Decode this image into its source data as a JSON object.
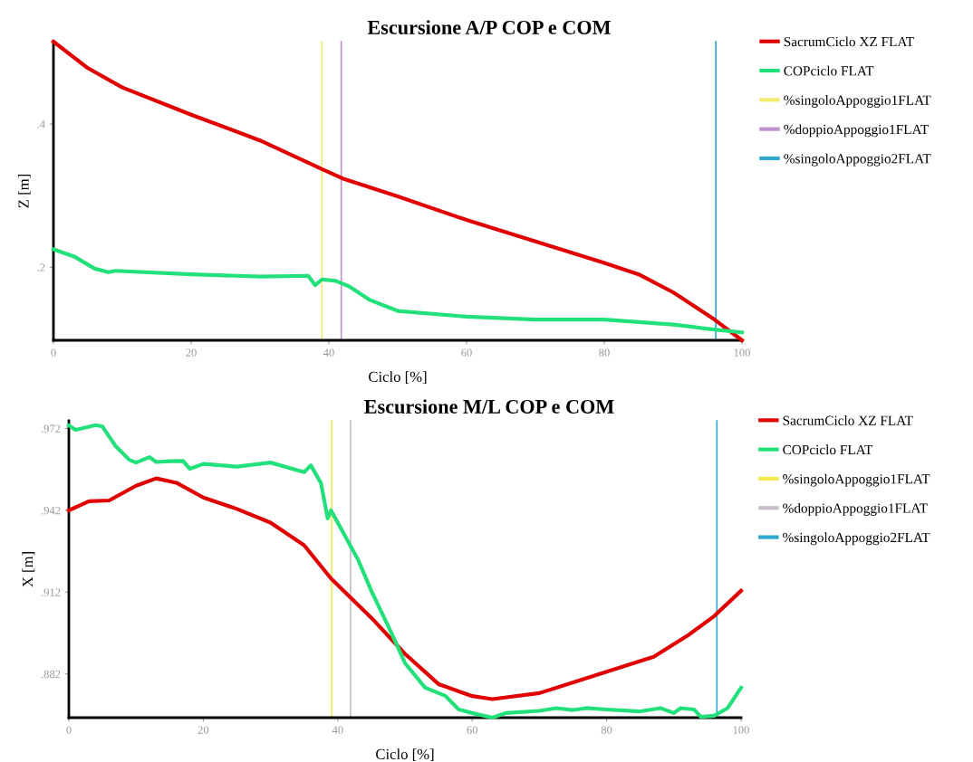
{
  "chart_data": [
    {
      "type": "line",
      "title": "Escursione A/P COP e COM",
      "xlabel": "Ciclo [%]",
      "ylabel": "Z [m]",
      "xlim": [
        0,
        100
      ],
      "xticks": [
        0,
        20,
        40,
        60,
        80,
        100
      ],
      "ylim": [
        0.098,
        0.515
      ],
      "yticks": [
        {
          "value": 0.2,
          "label": ".2"
        },
        {
          "value": 0.4,
          "label": ".4"
        }
      ],
      "grid": false,
      "legend": "right",
      "series": [
        {
          "name": "SacrumCiclo XZ FLAT",
          "color": "#e00000",
          "x": [
            0,
            5,
            10,
            20,
            30,
            39,
            42,
            50,
            60,
            70,
            80,
            85,
            90,
            96,
            100
          ],
          "values": [
            0.515,
            0.478,
            0.451,
            0.413,
            0.377,
            0.337,
            0.324,
            0.299,
            0.266,
            0.236,
            0.206,
            0.19,
            0.165,
            0.127,
            0.098
          ]
        },
        {
          "name": "COPciclo FLAT",
          "color": "#22e07a",
          "x": [
            0,
            3,
            6,
            8,
            9,
            20,
            30,
            37,
            38,
            39,
            41,
            43,
            46,
            50,
            60,
            70,
            80,
            90,
            95,
            100
          ],
          "values": [
            0.225,
            0.215,
            0.198,
            0.193,
            0.195,
            0.19,
            0.187,
            0.188,
            0.175,
            0.183,
            0.181,
            0.173,
            0.154,
            0.139,
            0.131,
            0.127,
            0.127,
            0.12,
            0.114,
            0.109
          ]
        },
        {
          "name": "%singoloAppoggio1FLAT",
          "color": "#f2ea70",
          "x": [
            39,
            39
          ],
          "values": [
            0.098,
            0.515
          ]
        },
        {
          "name": "%doppioAppoggio1FLAT",
          "color": "#c090d0",
          "x": [
            41.8,
            41.8
          ],
          "values": [
            0.098,
            0.515
          ]
        },
        {
          "name": "%singoloAppoggio2FLAT",
          "color": "#30a8d0",
          "x": [
            96.2,
            96.2
          ],
          "values": [
            0.098,
            0.515
          ]
        }
      ]
    },
    {
      "type": "line",
      "title": "Escursione M/L COP e COM",
      "xlabel": "Ciclo [%]",
      "ylabel": "X [m]",
      "xlim": [
        0,
        100
      ],
      "xticks": [
        0,
        20,
        40,
        60,
        80,
        100
      ],
      "ylim": [
        0.866,
        0.9748
      ],
      "yticks": [
        {
          "value": 0.882,
          "label": ".882"
        },
        {
          "value": 0.912,
          "label": ".912"
        },
        {
          "value": 0.942,
          "label": ".942"
        },
        {
          "value": 0.972,
          "label": ".972"
        }
      ],
      "grid": false,
      "legend": "right",
      "series": [
        {
          "name": "SacrumCiclo XZ FLAT",
          "color": "#e00000",
          "x": [
            0,
            3,
            6,
            10,
            13,
            16,
            20,
            25,
            30,
            35,
            39,
            45,
            50,
            55,
            60,
            63,
            70,
            80,
            87,
            92,
            96,
            100
          ],
          "values": [
            0.942,
            0.9453,
            0.9456,
            0.951,
            0.9537,
            0.9521,
            0.9467,
            0.9425,
            0.9375,
            0.9292,
            0.917,
            0.9026,
            0.8894,
            0.8783,
            0.8739,
            0.8728,
            0.875,
            0.8828,
            0.8883,
            0.896,
            0.9032,
            0.9125
          ]
        },
        {
          "name": "COPciclo FLAT",
          "color": "#22e07a",
          "x": [
            0,
            1,
            4,
            5,
            7,
            9,
            10,
            12,
            13,
            15,
            17,
            18,
            20,
            25,
            30,
            35,
            36,
            37.5,
            38.5,
            39,
            41,
            43,
            45,
            48,
            50,
            53,
            56,
            58,
            60,
            63,
            65,
            70,
            72.5,
            75,
            77,
            80,
            85,
            88,
            90,
            91,
            93,
            94,
            96,
            98,
            100
          ],
          "values": [
            0.9731,
            0.9715,
            0.9732,
            0.9727,
            0.9654,
            0.9605,
            0.9595,
            0.9615,
            0.9597,
            0.96,
            0.9601,
            0.9572,
            0.959,
            0.958,
            0.9595,
            0.956,
            0.9585,
            0.952,
            0.939,
            0.942,
            0.933,
            0.924,
            0.9125,
            0.897,
            0.886,
            0.877,
            0.874,
            0.869,
            0.8677,
            0.866,
            0.8677,
            0.8685,
            0.8695,
            0.8688,
            0.8695,
            0.869,
            0.8683,
            0.8695,
            0.8677,
            0.8695,
            0.869,
            0.8663,
            0.8667,
            0.8695,
            0.877
          ]
        },
        {
          "name": "%singoloAppoggio1FLAT",
          "color": "#f2ea50",
          "x": [
            39.1,
            39.1
          ],
          "values": [
            0.866,
            0.9748
          ]
        },
        {
          "name": "%doppioAppoggio1FLAT",
          "color": "#c8bcc8",
          "x": [
            41.9,
            41.9
          ],
          "values": [
            0.866,
            0.9748
          ]
        },
        {
          "name": "%singoloAppoggio2FLAT",
          "color": "#30a8d0",
          "x": [
            96.4,
            96.4
          ],
          "values": [
            0.866,
            0.9748
          ]
        }
      ]
    }
  ]
}
